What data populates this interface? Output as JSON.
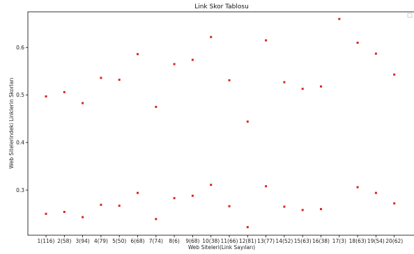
{
  "chart_data": {
    "type": "scatter",
    "title": "Link Skor Tablosu",
    "xlabel": "Web Siteleri(Link Sayıları)",
    "ylabel": "Web Sitelerindeki Linklerin Skorları",
    "categories": [
      "1(116)",
      "2(58)",
      "3(94)",
      "4(79)",
      "5(50)",
      "6(68)",
      "7(74)",
      "8(6)",
      "9(68)",
      "10(38)",
      "11(66)",
      "12(81)",
      "13(77)",
      "14(52)",
      "15(63)",
      "16(38)",
      "17(3)",
      "18(63)",
      "19(54)",
      "20(62)"
    ],
    "yticks": [
      0.3,
      0.4,
      0.5,
      0.6
    ],
    "ylim": [
      0.205,
      0.675
    ],
    "series": [
      {
        "values": [
          0.497,
          0.506,
          0.483,
          0.536,
          0.532,
          0.586,
          0.475,
          0.565,
          0.574,
          0.622,
          0.531,
          0.444,
          0.615,
          0.527,
          0.513,
          0.518,
          0.66,
          0.61,
          0.587,
          0.543
        ]
      },
      {
        "values": [
          0.25,
          0.254,
          0.243,
          0.269,
          0.267,
          0.294,
          0.239,
          0.283,
          0.288,
          0.311,
          0.266,
          0.222,
          0.308,
          0.265,
          0.258,
          0.26,
          null,
          0.306,
          0.294,
          0.272
        ]
      }
    ],
    "point_color": "#d62718",
    "legend": "top-right",
    "grid": false
  }
}
